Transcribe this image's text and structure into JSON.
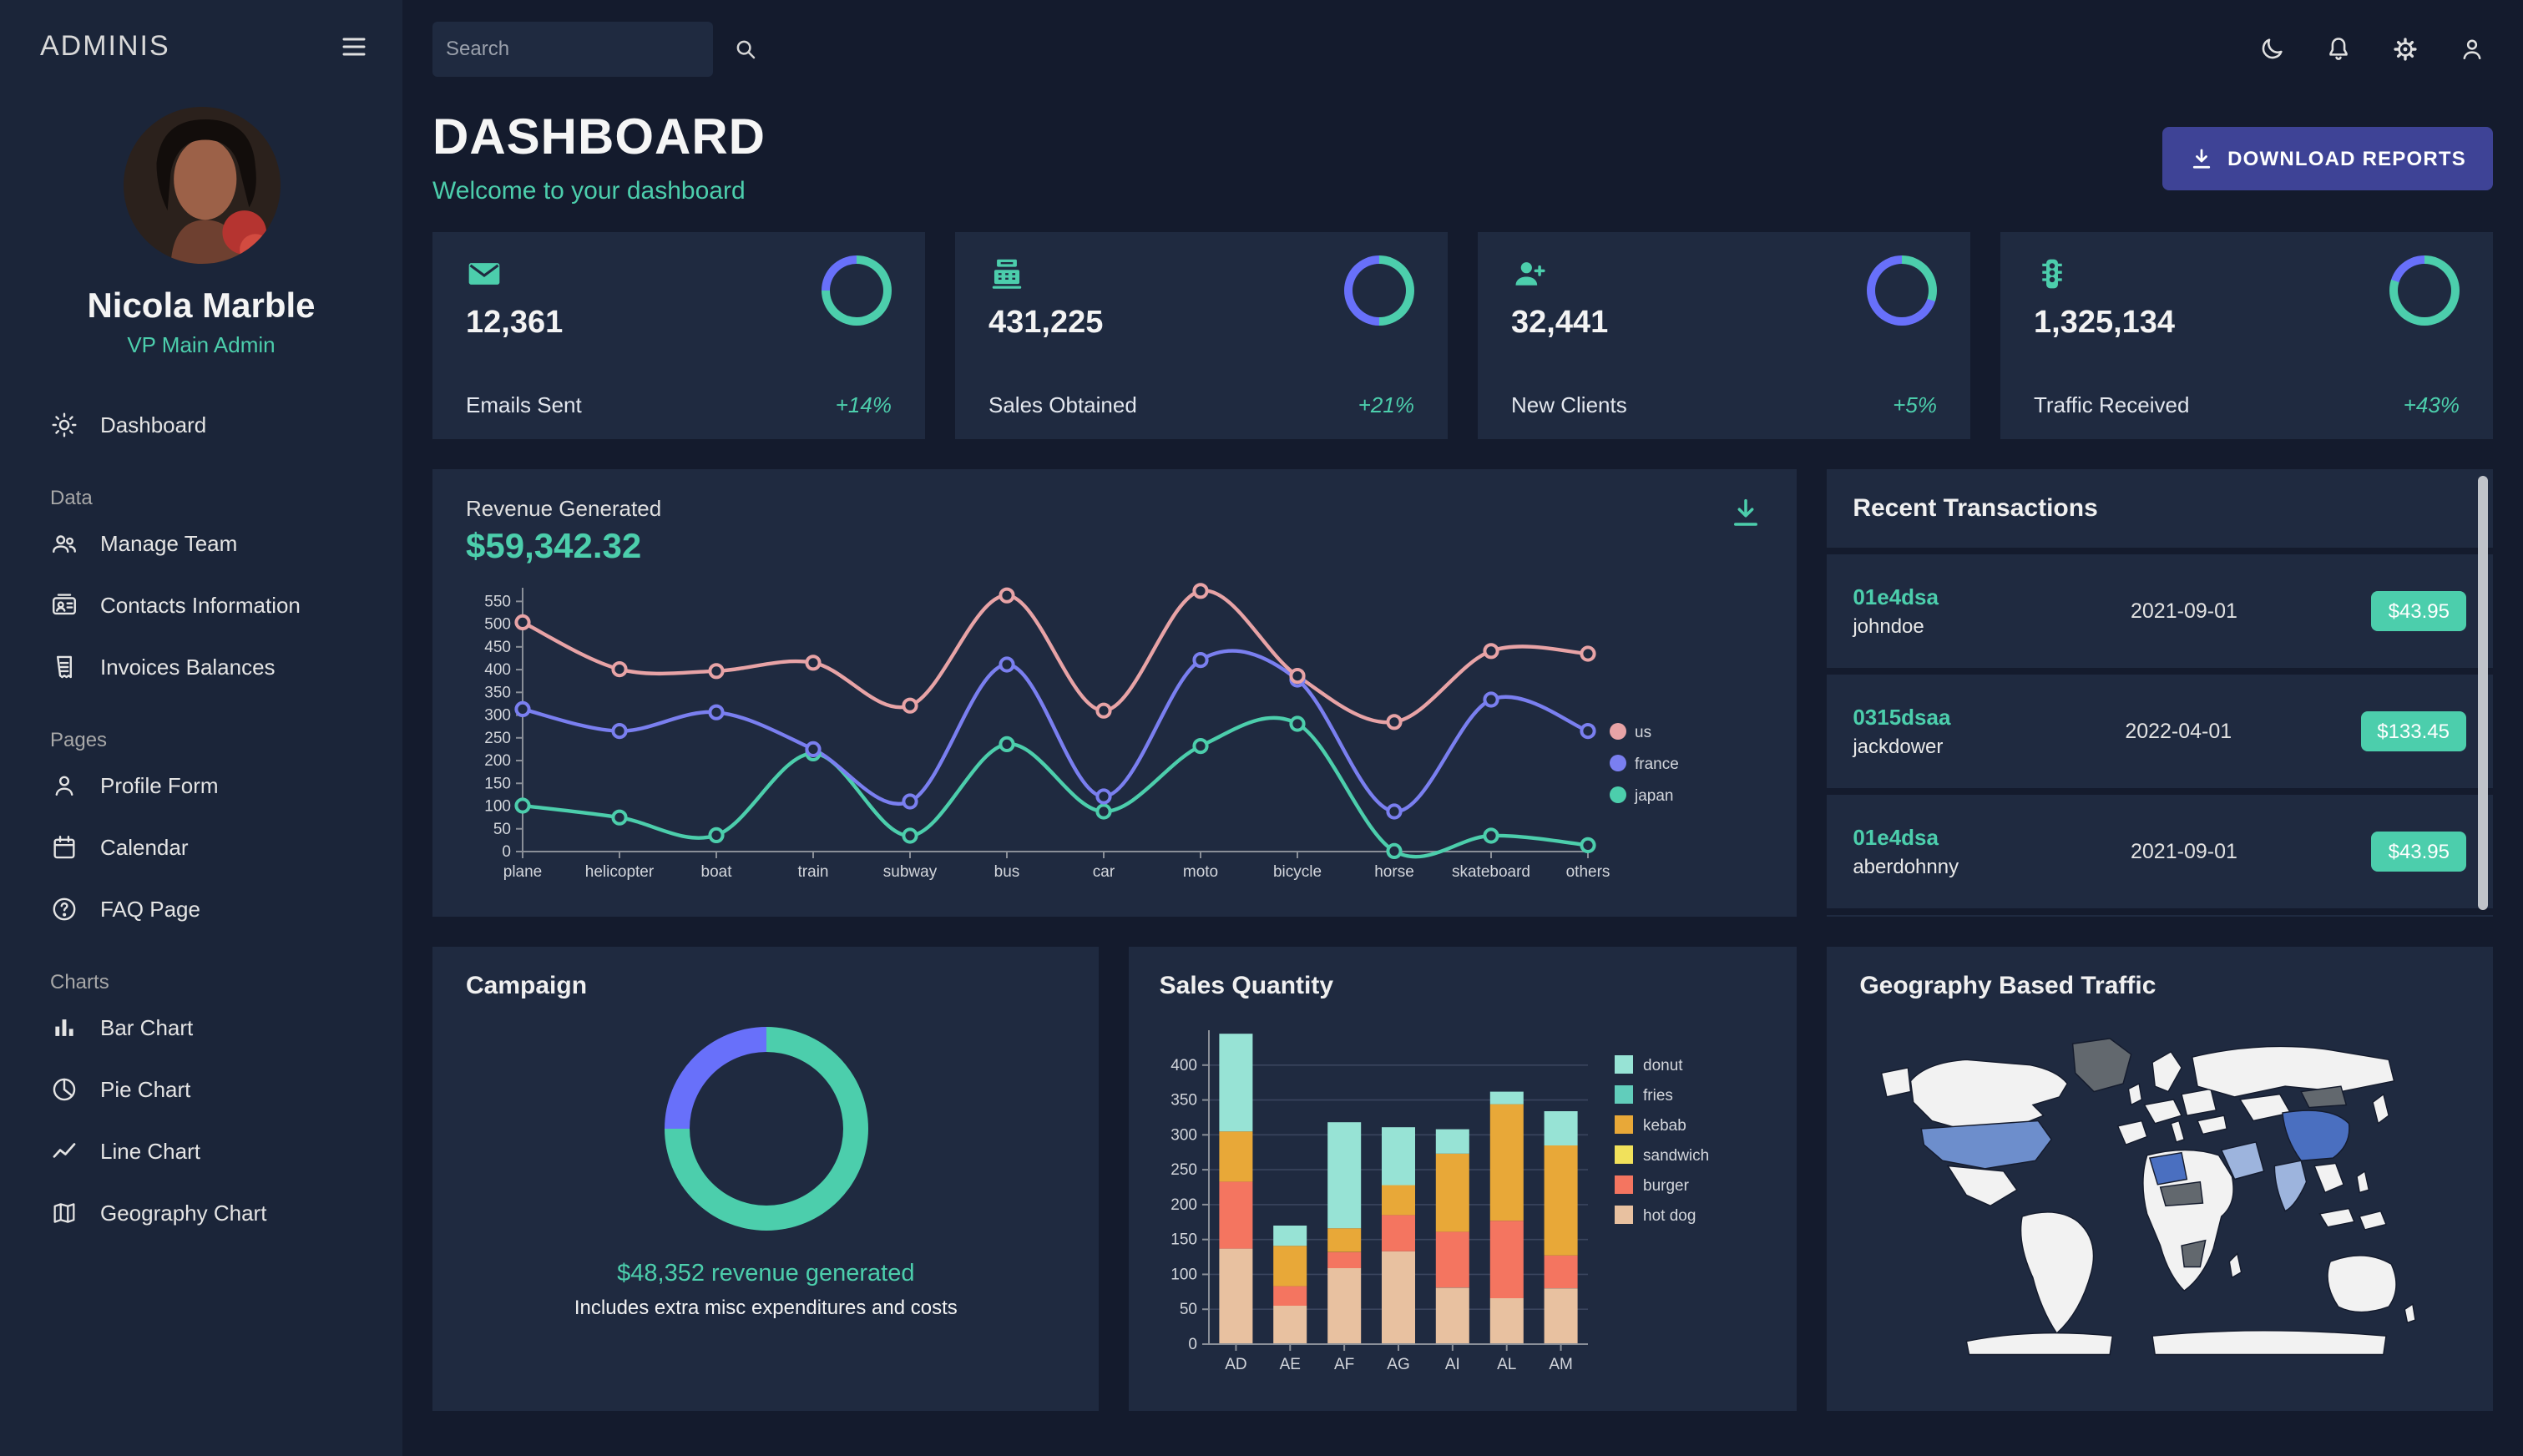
{
  "colors": {
    "background": "#141b2d",
    "panel": "#1f2a40",
    "green_accent": "#4cceac",
    "blue_accent": "#6870fa",
    "button_blue": "#3e4396",
    "text_light": "#e0e0e0",
    "text_muted": "#a3a3a3"
  },
  "sidebar": {
    "brand": "ADMINIS",
    "user": {
      "name": "Nicola Marble",
      "role": "VP Main Admin"
    },
    "dashboard": {
      "label": "Dashboard",
      "icon": "dashboard-icon"
    },
    "sections": [
      {
        "label": "Data",
        "items": [
          {
            "label": "Manage Team",
            "icon": "people-icon"
          },
          {
            "label": "Contacts Information",
            "icon": "contacts-icon"
          },
          {
            "label": "Invoices Balances",
            "icon": "receipt-icon"
          }
        ]
      },
      {
        "label": "Pages",
        "items": [
          {
            "label": "Profile Form",
            "icon": "person-icon"
          },
          {
            "label": "Calendar",
            "icon": "calendar-icon"
          },
          {
            "label": "FAQ Page",
            "icon": "help-icon"
          }
        ]
      },
      {
        "label": "Charts",
        "items": [
          {
            "label": "Bar Chart",
            "icon": "bar-chart-icon"
          },
          {
            "label": "Pie Chart",
            "icon": "pie-chart-icon"
          },
          {
            "label": "Line Chart",
            "icon": "line-chart-icon"
          },
          {
            "label": "Geography Chart",
            "icon": "map-icon"
          }
        ]
      }
    ]
  },
  "topbar": {
    "search_placeholder": "Search",
    "icons": [
      "dark-mode-icon",
      "notifications-icon",
      "settings-icon",
      "profile-icon"
    ]
  },
  "header": {
    "title": "DASHBOARD",
    "subtitle": "Welcome to your dashboard",
    "download_button": "DOWNLOAD REPORTS"
  },
  "stats": [
    {
      "value": "12,361",
      "label": "Emails Sent",
      "delta": "+14%",
      "progress": 0.75,
      "icon": "email-icon"
    },
    {
      "value": "431,225",
      "label": "Sales Obtained",
      "delta": "+21%",
      "progress": 0.5,
      "icon": "point-of-sale-icon"
    },
    {
      "value": "32,441",
      "label": "New Clients",
      "delta": "+5%",
      "progress": 0.3,
      "icon": "person-add-icon"
    },
    {
      "value": "1,325,134",
      "label": "Traffic Received",
      "delta": "+43%",
      "progress": 0.8,
      "icon": "traffic-icon"
    }
  ],
  "revenue": {
    "title": "Revenue Generated",
    "amount": "$59,342.32"
  },
  "transactions": {
    "title": "Recent Transactions",
    "rows": [
      {
        "id": "01e4dsa",
        "user": "johndoe",
        "date": "2021-09-01",
        "amount": "$43.95"
      },
      {
        "id": "0315dsaa",
        "user": "jackdower",
        "date": "2022-04-01",
        "amount": "$133.45"
      },
      {
        "id": "01e4dsa",
        "user": "aberdohnny",
        "date": "2021-09-01",
        "amount": "$43.95"
      }
    ]
  },
  "campaign": {
    "title": "Campaign",
    "highlight": "$48,352 revenue generated",
    "note": "Includes extra misc expenditures and costs"
  },
  "sales": {
    "title": "Sales Quantity"
  },
  "geography": {
    "title": "Geography Based Traffic"
  },
  "chart_data": [
    {
      "type": "line",
      "title": "Revenue Generated",
      "stacked": true,
      "x": [
        "plane",
        "helicopter",
        "boat",
        "train",
        "subway",
        "bus",
        "car",
        "moto",
        "bicycle",
        "horse",
        "skateboard",
        "others"
      ],
      "series": [
        {
          "name": "japan",
          "color": "#4cceac",
          "values": [
            101,
            75,
            36,
            216,
            35,
            236,
            88,
            232,
            281,
            1,
            35,
            14
          ]
        },
        {
          "name": "france",
          "color": "#7a7ff0",
          "values": [
            212,
            190,
            270,
            9,
            75,
            175,
            33,
            189,
            97,
            87,
            299,
            251
          ]
        },
        {
          "name": "us",
          "color": "#e8a3a6",
          "values": [
            191,
            136,
            91,
            190,
            211,
            152,
            189,
            152,
            8,
            197,
            107,
            170
          ]
        }
      ],
      "y_ticks": [
        0,
        50,
        100,
        150,
        200,
        250,
        300,
        350,
        400,
        450,
        500,
        550
      ],
      "ylim": [
        0,
        580
      ],
      "legend": [
        "us",
        "france",
        "japan"
      ],
      "legend_position": "right",
      "grid": false
    },
    {
      "type": "bar",
      "title": "Sales Quantity",
      "stacked": true,
      "categories": [
        "AD",
        "AE",
        "AF",
        "AG",
        "AI",
        "AL",
        "AM"
      ],
      "series": [
        {
          "name": "hot dog",
          "color": "#e8c1a0",
          "values": [
            137,
            55,
            109,
            133,
            81,
            66,
            80
          ]
        },
        {
          "name": "burger",
          "color": "#f47560",
          "values": [
            96,
            28,
            23,
            52,
            80,
            111,
            47
          ]
        },
        {
          "name": "sandwich",
          "color": "#f1e15b",
          "values": [
            0,
            0,
            0,
            0,
            0,
            0,
            0
          ]
        },
        {
          "name": "kebab",
          "color": "#e8a838",
          "values": [
            72,
            58,
            34,
            43,
            112,
            167,
            158
          ]
        },
        {
          "name": "fries",
          "color": "#61cdbb",
          "values": [
            0,
            0,
            0,
            0,
            0,
            0,
            0
          ]
        },
        {
          "name": "donut",
          "color": "#97e3d5",
          "values": [
            140,
            29,
            152,
            83,
            35,
            18,
            49
          ]
        }
      ],
      "y_ticks": [
        0,
        50,
        100,
        150,
        200,
        250,
        300,
        350,
        400
      ],
      "ylim": [
        0,
        450
      ],
      "legend": [
        "donut",
        "fries",
        "kebab",
        "sandwich",
        "burger",
        "hot dog"
      ],
      "legend_position": "right",
      "grid": true
    },
    {
      "type": "donut",
      "title": "Campaign",
      "progress": 0.75,
      "colors": {
        "progress": "#4cceac",
        "remainder": "#6870fa"
      },
      "label": "$48,352 revenue generated",
      "note": "Includes extra misc expenditures and costs"
    },
    {
      "type": "choropleth",
      "title": "Geography Based Traffic",
      "palette": {
        "land": "#f2f2f2",
        "shaded": "#62686e",
        "traffic_high": "#4a6fc0",
        "traffic_mid": "#6d8ecc",
        "traffic_low": "#9db4dd"
      }
    }
  ]
}
